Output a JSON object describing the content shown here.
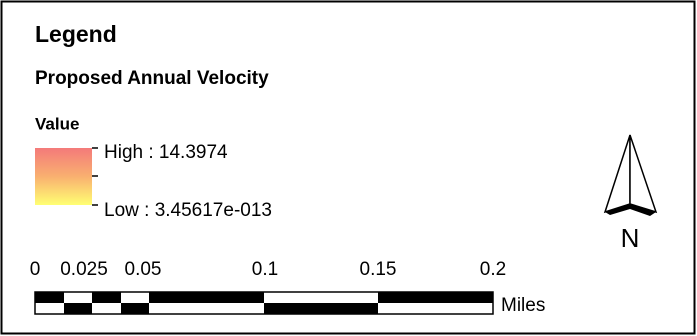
{
  "legend": {
    "title": "Legend",
    "layer": "Proposed Annual Velocity",
    "field": "Value",
    "high_label": "High : 14.3974",
    "low_label": "Low : 3.45617e-013",
    "north": "N",
    "scale_labels": [
      "0",
      "0.025",
      "0.05",
      "0.1",
      "0.15",
      "0.2"
    ],
    "scale_unit": "Miles"
  }
}
